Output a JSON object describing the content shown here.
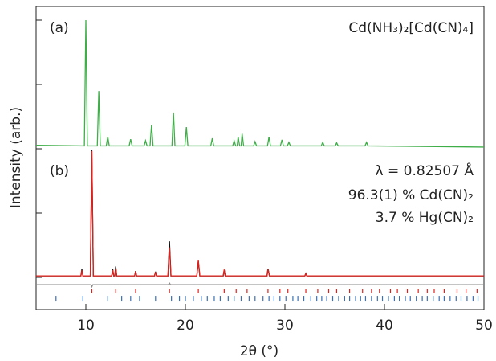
{
  "chart_data": {
    "type": "line",
    "x_label": "2θ (°)",
    "y_label": "Intensity (arb.)",
    "xlim": [
      5,
      50
    ],
    "xticks": [
      10,
      20,
      30,
      40,
      50
    ],
    "ylim": [
      0,
      100
    ],
    "annotations": [
      "(a)",
      "(b)",
      "λ = 0.82507 Å"
    ],
    "series": [
      {
        "name": "Cd(NH₃)₂[Cd(CN)₄]",
        "color": "#3fae49",
        "style": "line",
        "x": [
          5,
          9.85,
          10.0,
          10.15,
          11.15,
          11.3,
          11.45,
          12.05,
          12.2,
          12.35,
          14.35,
          14.5,
          14.65,
          15.85,
          16.0,
          16.15,
          16.45,
          16.6,
          16.75,
          18.65,
          18.8,
          18.95,
          19.95,
          20.1,
          20.25,
          22.55,
          22.7,
          22.85,
          24.75,
          24.9,
          25.05,
          25.2,
          25.3,
          25.45,
          25.6,
          25.7,
          25.85,
          26.85,
          27.0,
          27.15,
          28.25,
          28.4,
          28.55,
          29.55,
          29.7,
          29.85,
          30.25,
          30.4,
          30.55,
          33.65,
          33.8,
          33.95,
          35.05,
          35.2,
          35.35,
          38.05,
          38.2,
          38.35,
          50
        ],
        "values": [
          54.2,
          54,
          95.5,
          54,
          54,
          72.1,
          54,
          54,
          57,
          54,
          54,
          56.2,
          54,
          54,
          55.7,
          54,
          54,
          61,
          54,
          54,
          65,
          54,
          54,
          60.2,
          54,
          54,
          56.5,
          54,
          54,
          55.7,
          54,
          54,
          57,
          54,
          54,
          58,
          54,
          54,
          55.4,
          54,
          54,
          57,
          54,
          54,
          56,
          54,
          54,
          55.2,
          54,
          54,
          55.2,
          54,
          54,
          55,
          54,
          54,
          55.2,
          54,
          53.6
        ]
      },
      {
        "color": "#111111",
        "style": "line",
        "x": [
          5,
          9.5,
          9.6,
          9.7,
          10.45,
          10.6,
          10.75,
          12.6,
          12.7,
          12.8,
          12.9,
          13.0,
          13.1,
          14.9,
          15.0,
          15.1,
          16.9,
          17.0,
          17.1,
          18.25,
          18.4,
          18.55,
          21.15,
          21.3,
          21.45,
          23.8,
          23.9,
          24.0,
          28.2,
          28.3,
          28.45,
          32.0,
          32.1,
          32.2,
          50
        ],
        "values": [
          11.1,
          11.1,
          13.3,
          11.1,
          11.1,
          52.5,
          11.1,
          11.1,
          13.3,
          11.1,
          11.1,
          14.2,
          11.1,
          11.1,
          12.7,
          11.1,
          11.1,
          12.5,
          11.1,
          11.1,
          22.5,
          11.1,
          11.1,
          15.9,
          11.1,
          11.1,
          13,
          11.1,
          11.1,
          13.5,
          11.1,
          11.1,
          11.9,
          11.1,
          11.1
        ]
      },
      {
        "name": "96.3(1) % Cd(CN)₂",
        "color": "#e0201b",
        "style": "line",
        "x": [
          5,
          9.5,
          9.6,
          9.7,
          10.45,
          10.6,
          10.75,
          12.6,
          12.7,
          12.8,
          12.9,
          13.0,
          13.1,
          14.9,
          15.0,
          15.1,
          16.9,
          17.0,
          17.1,
          18.25,
          18.4,
          18.55,
          21.15,
          21.3,
          21.45,
          23.8,
          23.9,
          24.0,
          28.2,
          28.3,
          28.45,
          32.0,
          32.1,
          32.2,
          50
        ],
        "values": [
          11.1,
          11.1,
          13,
          11.1,
          11.1,
          52.3,
          11.1,
          11.1,
          13,
          11.1,
          11.1,
          13.5,
          11.1,
          11.1,
          12.6,
          11.1,
          11.1,
          12.4,
          11.1,
          11.1,
          20.5,
          11.1,
          11.1,
          16.2,
          11.1,
          11.1,
          13.2,
          11.1,
          11.1,
          13.3,
          11.1,
          11.1,
          11.8,
          11.1,
          11.1
        ]
      },
      {
        "color": "#8a8a8a",
        "style": "line",
        "x": [
          5,
          10.5,
          10.6,
          10.7,
          18.3,
          18.4,
          18.5,
          50
        ],
        "values": [
          8.2,
          8.2,
          7.5,
          8.2,
          8.2,
          8.7,
          8.2,
          8.2
        ]
      },
      {
        "color": "#e0201b",
        "style": "ticks",
        "y": 6.1,
        "x": [
          10.6,
          13.0,
          15.0,
          18.4,
          21.3,
          23.9,
          25.1,
          26.2,
          28.3,
          29.5,
          30.3,
          32.1,
          33.3,
          34.4,
          35.2,
          36.5,
          37.8,
          38.7,
          39.5,
          40.6,
          41.3,
          42.3,
          43.4,
          44.3,
          45.0,
          46.0,
          47.3,
          48.2,
          49.3
        ]
      },
      {
        "name": "3.7 % Hg(CN)₂",
        "color": "#3a6fb0",
        "style": "ticks",
        "y": 3.7,
        "x": [
          7.0,
          9.7,
          12.2,
          13.6,
          14.5,
          15.4,
          17.0,
          18.6,
          19.4,
          20.0,
          20.8,
          21.6,
          22.2,
          22.9,
          23.5,
          24.3,
          24.9,
          25.6,
          26.4,
          27.0,
          27.8,
          28.4,
          28.9,
          29.5,
          30.1,
          30.8,
          31.3,
          31.9,
          32.6,
          33.2,
          33.7,
          34.2,
          34.8,
          35.4,
          36.0,
          36.5,
          37.1,
          37.6,
          38.1,
          38.7,
          39.3,
          39.8,
          40.4,
          41.0,
          41.5,
          42.1,
          42.6,
          43.2,
          43.8,
          44.3,
          44.9,
          45.5,
          46.0,
          46.6,
          47.2,
          47.7,
          48.3,
          48.9,
          49.4
        ]
      }
    ]
  }
}
